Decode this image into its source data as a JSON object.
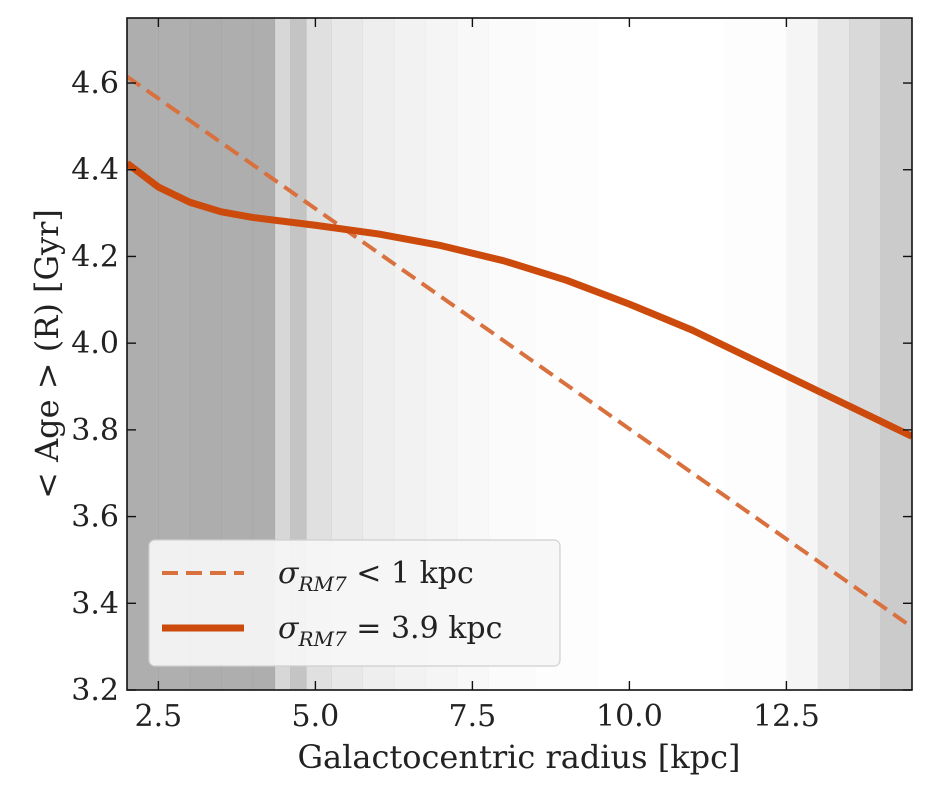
{
  "chart_data": {
    "type": "line",
    "xlabel": "Galactocentric radius [kpc]",
    "ylabel": "< Age > (R) [Gyr]",
    "xlim": [
      2.0,
      14.5
    ],
    "ylim": [
      3.2,
      4.75
    ],
    "xticks": [
      2.5,
      5.0,
      7.5,
      10.0,
      12.5
    ],
    "xtick_labels": [
      "2.5",
      "5.0",
      "7.5",
      "10.0",
      "12.5"
    ],
    "yticks": [
      3.2,
      3.4,
      3.6,
      3.8,
      4.0,
      4.2,
      4.4,
      4.6
    ],
    "ytick_labels": [
      "3.2",
      "3.4",
      "3.6",
      "3.8",
      "4.0",
      "4.2",
      "4.4",
      "4.6"
    ],
    "grid": false,
    "legend_position": "lower-left",
    "series": [
      {
        "name_symbol": "σ",
        "name_sub": "RM7",
        "name_rest": " < 1 kpc",
        "style": "dashed",
        "color": "#d9713f",
        "x": [
          2.0,
          14.5
        ],
        "y": [
          4.615,
          3.345
        ]
      },
      {
        "name_symbol": "σ",
        "name_sub": "RM7",
        "name_rest": " = 3.9 kpc",
        "style": "solid",
        "color": "#cc4a0c",
        "x": [
          2.0,
          2.5,
          3.0,
          3.5,
          4.0,
          5.0,
          6.0,
          7.0,
          8.0,
          9.0,
          10.0,
          11.0,
          12.0,
          13.0,
          14.0,
          14.5
        ],
        "y": [
          4.415,
          4.36,
          4.325,
          4.303,
          4.29,
          4.272,
          4.252,
          4.225,
          4.19,
          4.145,
          4.09,
          4.03,
          3.96,
          3.89,
          3.82,
          3.785
        ]
      }
    ],
    "background_bands": {
      "color": "#a0a0a0",
      "x_edges": [
        2.0,
        2.5,
        3.0,
        3.5,
        4.0,
        4.35,
        4.6,
        4.85,
        5.25,
        5.75,
        6.25,
        6.75,
        7.25,
        7.75,
        8.5,
        9.5,
        10.5,
        11.5,
        12.5,
        13.0,
        13.5,
        14.0,
        14.5
      ],
      "levels": [
        0.85,
        0.84,
        0.86,
        0.85,
        0.85,
        0.42,
        0.62,
        0.32,
        0.24,
        0.18,
        0.14,
        0.1,
        0.08,
        0.04,
        0.02,
        0.0,
        0.0,
        0.02,
        0.1,
        0.26,
        0.4,
        0.55,
        0.7
      ]
    }
  }
}
